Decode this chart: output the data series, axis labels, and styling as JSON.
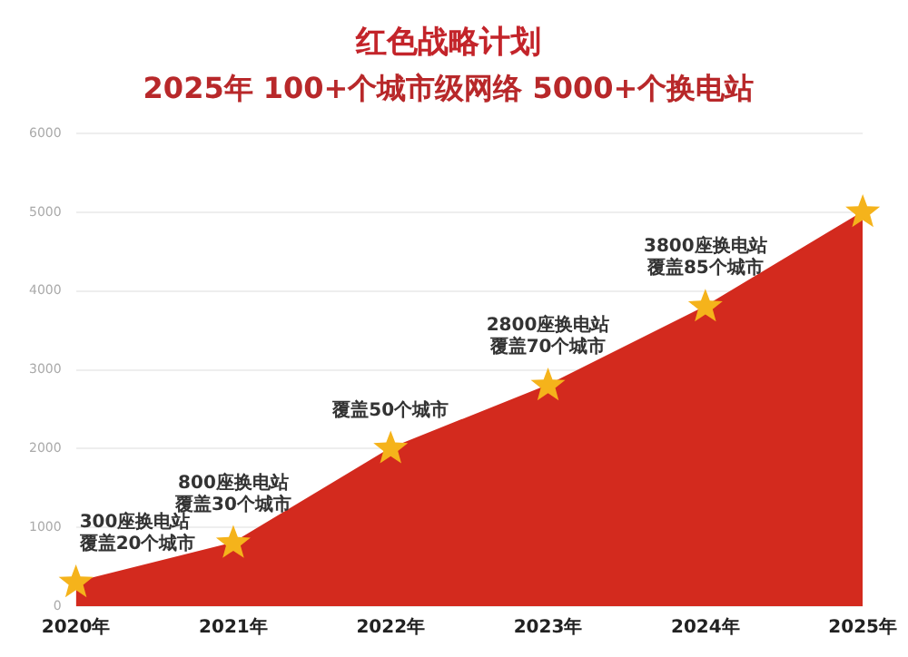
{
  "chart_data": {
    "type": "area",
    "title": "红色战略计划",
    "subtitle": "2025年 100+个城市级网络 5000+个换电站",
    "categories": [
      "2020年",
      "2021年",
      "2022年",
      "2023年",
      "2024年",
      "2025年"
    ],
    "series": [
      {
        "color": "#d32a1e",
        "values": [
          300,
          800,
          2000,
          2800,
          3800,
          5000
        ]
      }
    ],
    "ylim": [
      0,
      6000
    ],
    "yticks": [
      0,
      1000,
      2000,
      3000,
      4000,
      5000,
      6000
    ],
    "grid": "y",
    "legend": false,
    "marker": "star",
    "annotations": [
      {
        "text": "300座换电站",
        "x": "2020年",
        "y": 300
      },
      {
        "text": "覆盖20个城市",
        "x": "2020年",
        "y": 300
      },
      {
        "text": "800座换电站",
        "x": "2021年",
        "y": 800
      },
      {
        "text": "覆盖30个城市",
        "x": "2021年",
        "y": 800
      },
      {
        "text": "覆盖50个城市",
        "x": "2022年",
        "y": 2000
      },
      {
        "text": "2800座换电站",
        "x": "2023年",
        "y": 2800
      },
      {
        "text": "覆盖70个城市",
        "x": "2023年",
        "y": 2800
      },
      {
        "text": "3800座换电站",
        "x": "2024年",
        "y": 3800
      },
      {
        "text": "覆盖85个城市",
        "x": "2024年",
        "y": 3800
      }
    ]
  }
}
